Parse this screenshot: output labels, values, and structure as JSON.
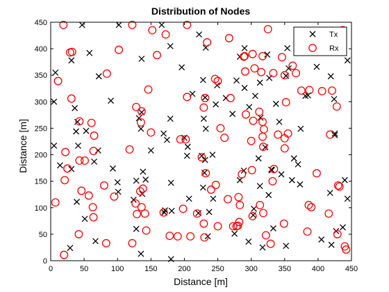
{
  "chart_data": {
    "type": "scatter",
    "title": "Distribution of Nodes",
    "xlabel": "Distance [m]",
    "ylabel": "Distance [m]",
    "xlim": [
      0,
      450
    ],
    "ylim": [
      0,
      450
    ],
    "xticks": [
      0,
      50,
      100,
      150,
      200,
      250,
      300,
      350,
      400,
      450
    ],
    "yticks": [
      0,
      50,
      100,
      150,
      200,
      250,
      300,
      350,
      400,
      450
    ],
    "grid": false,
    "legend_position": "top-right",
    "series": [
      {
        "name": "Tx",
        "marker": "x",
        "color": "#000000",
        "points": [
          [
            47,
            445
          ],
          [
            102,
            445
          ],
          [
            166,
            445
          ],
          [
            222,
            427
          ],
          [
            232,
            402
          ],
          [
            179,
            405
          ],
          [
            31,
            378
          ],
          [
            58,
            392
          ],
          [
            136,
            381
          ],
          [
            290,
            401
          ],
          [
            354,
            401
          ],
          [
            444,
            378
          ],
          [
            7,
            355
          ],
          [
            72,
            348
          ],
          [
            196,
            365
          ],
          [
            283,
            385
          ],
          [
            324,
            389
          ],
          [
            327,
            345
          ],
          [
            352,
            349
          ],
          [
            398,
            366
          ],
          [
            419,
            348
          ],
          [
            5,
            300
          ],
          [
            36,
            288
          ],
          [
            90,
            302
          ],
          [
            136,
            280
          ],
          [
            212,
            315
          ],
          [
            228,
            341
          ],
          [
            231,
            308
          ],
          [
            249,
            331
          ],
          [
            278,
            340
          ],
          [
            297,
            290
          ],
          [
            306,
            311
          ],
          [
            314,
            270
          ],
          [
            337,
            296
          ],
          [
            381,
            311
          ],
          [
            385,
            312
          ],
          [
            424,
            305
          ],
          [
            425,
            237
          ],
          [
            40,
            262
          ],
          [
            38,
            244
          ],
          [
            53,
            245
          ],
          [
            132,
            269
          ],
          [
            135,
            249
          ],
          [
            169,
            240
          ],
          [
            179,
            268
          ],
          [
            200,
            232
          ],
          [
            229,
            268
          ],
          [
            232,
            249
          ],
          [
            247,
            295
          ],
          [
            262,
            307
          ],
          [
            272,
            277
          ],
          [
            290,
            326
          ],
          [
            313,
            336
          ],
          [
            342,
            262
          ],
          [
            374,
            249
          ],
          [
            5,
            217
          ],
          [
            41,
            217
          ],
          [
            65,
            187
          ],
          [
            71,
            208
          ],
          [
            150,
            208
          ],
          [
            205,
            215
          ],
          [
            204,
            198
          ],
          [
            226,
            198
          ],
          [
            242,
            200
          ],
          [
            311,
            193
          ],
          [
            321,
            214
          ],
          [
            331,
            171
          ],
          [
            345,
            163
          ],
          [
            373,
            144
          ],
          [
            425,
            240
          ],
          [
            356,
            363
          ],
          [
            14,
            180
          ],
          [
            31,
            173
          ],
          [
            93,
            174
          ],
          [
            100,
            148
          ],
          [
            101,
            130
          ],
          [
            128,
            151
          ],
          [
            138,
            168
          ],
          [
            142,
            153
          ],
          [
            174,
            228
          ],
          [
            180,
            147
          ],
          [
            207,
            117
          ],
          [
            230,
            166
          ],
          [
            231,
            190
          ],
          [
            243,
            117
          ],
          [
            283,
            152
          ],
          [
            289,
            170
          ],
          [
            313,
            141
          ],
          [
            330,
            172
          ],
          [
            364,
            193
          ],
          [
            39,
            111
          ],
          [
            51,
            79
          ],
          [
            124,
            115
          ],
          [
            128,
            60
          ],
          [
            137,
            126
          ],
          [
            170,
            91
          ],
          [
            171,
            95
          ],
          [
            181,
            94
          ],
          [
            221,
            90
          ],
          [
            228,
            138
          ],
          [
            237,
            92
          ],
          [
            303,
            86
          ],
          [
            317,
            25
          ],
          [
            326,
            124
          ],
          [
            333,
            61
          ],
          [
            370,
            182
          ],
          [
            418,
            128
          ],
          [
            427,
            56
          ],
          [
            437,
            63
          ],
          [
            29,
            24
          ],
          [
            67,
            37
          ],
          [
            135,
            13
          ],
          [
            180,
            3
          ],
          [
            235,
            46
          ],
          [
            275,
            51
          ],
          [
            296,
            36
          ],
          [
            304,
            98
          ],
          [
            352,
            28
          ],
          [
            361,
            152
          ],
          [
            405,
            40
          ],
          [
            420,
            30
          ],
          [
            444,
            117
          ],
          [
            440,
            152
          ]
        ]
      },
      {
        "name": "Rx",
        "marker": "o",
        "color": "#ff0000",
        "points": [
          [
            19,
            445
          ],
          [
            122,
            445
          ],
          [
            152,
            435
          ],
          [
            172,
            427
          ],
          [
            204,
            445
          ],
          [
            234,
            412
          ],
          [
            267,
            420
          ],
          [
            290,
            386
          ],
          [
            302,
            390
          ],
          [
            325,
            437
          ],
          [
            437,
            435
          ],
          [
            29,
            393
          ],
          [
            32,
            394
          ],
          [
            102,
            398
          ],
          [
            159,
            388
          ],
          [
            289,
            385
          ],
          [
            317,
            386
          ],
          [
            367,
            354
          ],
          [
            346,
            384
          ],
          [
            362,
            368
          ],
          [
            350,
            350
          ],
          [
            11,
            339
          ],
          [
            84,
            353
          ],
          [
            146,
            323
          ],
          [
            250,
            339
          ],
          [
            246,
            343
          ],
          [
            291,
            357
          ],
          [
            333,
            354
          ],
          [
            305,
            363
          ],
          [
            315,
            356
          ],
          [
            406,
            320
          ],
          [
            375,
            321
          ],
          [
            421,
            321
          ],
          [
            387,
            322
          ],
          [
            31,
            306
          ],
          [
            43,
            263
          ],
          [
            61,
            260
          ],
          [
            65,
            236
          ],
          [
            128,
            290
          ],
          [
            135,
            261
          ],
          [
            136,
            282
          ],
          [
            204,
            309
          ],
          [
            229,
            289
          ],
          [
            231,
            307
          ],
          [
            254,
            250
          ],
          [
            269,
            307
          ],
          [
            292,
            276
          ],
          [
            303,
            264
          ],
          [
            312,
            281
          ],
          [
            317,
            262
          ],
          [
            319,
            248
          ],
          [
            340,
            238
          ],
          [
            352,
            299
          ],
          [
            418,
            238
          ],
          [
            428,
            291
          ],
          [
            22,
            205
          ],
          [
            25,
            174
          ],
          [
            43,
            189
          ],
          [
            51,
            189
          ],
          [
            64,
            207
          ],
          [
            118,
            210
          ],
          [
            150,
            242
          ],
          [
            194,
            229
          ],
          [
            202,
            229
          ],
          [
            226,
            195
          ],
          [
            232,
            165
          ],
          [
            260,
            232
          ],
          [
            300,
            226
          ],
          [
            317,
            234
          ],
          [
            318,
            215
          ],
          [
            332,
            150
          ],
          [
            334,
            173
          ],
          [
            350,
            231
          ],
          [
            350,
            212
          ],
          [
            355,
            240
          ],
          [
            398,
            165
          ],
          [
            21,
            152
          ],
          [
            46,
            132
          ],
          [
            57,
            123
          ],
          [
            63,
            101
          ],
          [
            64,
            82
          ],
          [
            80,
            142
          ],
          [
            95,
            121
          ],
          [
            129,
            88
          ],
          [
            136,
            101
          ],
          [
            134,
            131
          ],
          [
            138,
            136
          ],
          [
            178,
            47
          ],
          [
            198,
            98
          ],
          [
            219,
            89
          ],
          [
            229,
            70
          ],
          [
            240,
            134
          ],
          [
            247,
            143
          ],
          [
            265,
            116
          ],
          [
            280,
            66
          ],
          [
            281,
            120
          ],
          [
            283,
            105
          ],
          [
            286,
            163
          ],
          [
            301,
            171
          ],
          [
            313,
            105
          ],
          [
            318,
            90
          ],
          [
            349,
            70
          ],
          [
            384,
            55
          ],
          [
            386,
            105
          ],
          [
            390,
            101
          ],
          [
            416,
            89
          ],
          [
            430,
            142
          ],
          [
            432,
            140
          ],
          [
            7,
            110
          ],
          [
            20,
            11
          ],
          [
            42,
            50
          ],
          [
            83,
            33
          ],
          [
            122,
            33
          ],
          [
            127,
            108
          ],
          [
            141,
            89
          ],
          [
            143,
            57
          ],
          [
            169,
            91
          ],
          [
            190,
            46
          ],
          [
            209,
            46
          ],
          [
            230,
            44
          ],
          [
            250,
            65
          ],
          [
            273,
            65
          ],
          [
            278,
            65
          ],
          [
            282,
            73
          ],
          [
            302,
            84
          ],
          [
            322,
            48
          ],
          [
            329,
            32
          ],
          [
            429,
            50
          ],
          [
            440,
            27
          ],
          [
            442,
            21
          ]
        ]
      }
    ]
  }
}
